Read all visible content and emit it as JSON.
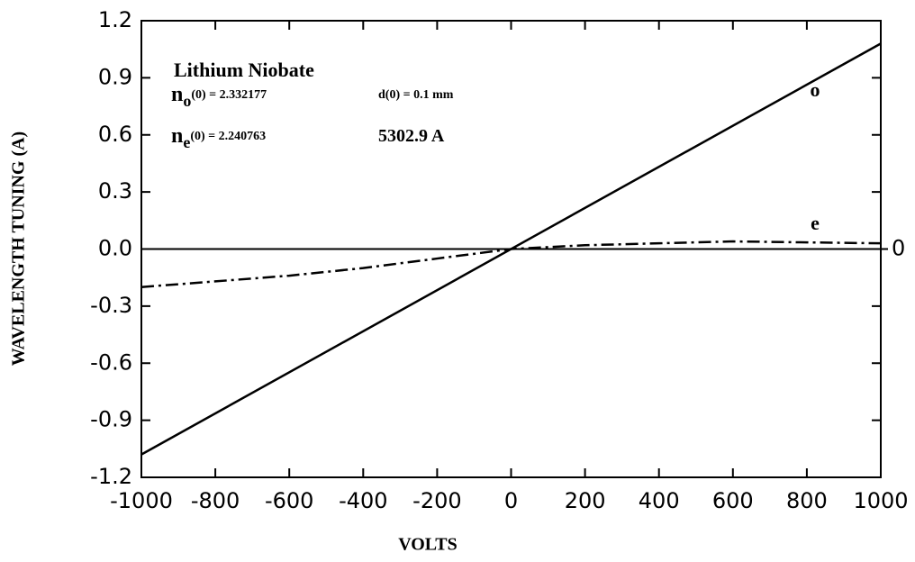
{
  "chart_data": {
    "type": "line",
    "x_label": "VOLTS",
    "y_label": "WAVELENGTH TUNING (A)",
    "xlim": [
      -1000,
      1000
    ],
    "ylim": [
      -1.2,
      1.2
    ],
    "xticks": [
      -1000,
      -800,
      -600,
      -400,
      -200,
      0,
      200,
      400,
      600,
      800,
      1000
    ],
    "yticks": [
      -1.2,
      -0.9,
      -0.6,
      -0.3,
      {
        "value": 0,
        "label": "0.0"
      },
      0.3,
      0.6,
      0.9,
      1.2
    ],
    "y2lim": [
      -1.2,
      1.2
    ],
    "y2ticks": [
      0
    ],
    "zero_line": true,
    "series": [
      {
        "name": "o",
        "color": "#000000",
        "line_style": "solid",
        "x": [
          -1000,
          1000
        ],
        "values": [
          -1.08,
          1.08
        ]
      },
      {
        "name": "e",
        "color": "#000000",
        "line_style": "dashdot",
        "x": [
          -1000,
          -800,
          -600,
          -400,
          -200,
          0,
          200,
          400,
          600,
          800,
          1000
        ],
        "values": [
          -0.2,
          -0.17,
          -0.14,
          -0.1,
          -0.05,
          0.0,
          0.02,
          0.03,
          0.04,
          0.035,
          0.03
        ]
      }
    ],
    "annotations": [
      {
        "text": "Lithium Niobate"
      },
      {
        "symbol": "n",
        "subscript": "o",
        "text": "(0) = 2.332177"
      },
      {
        "text": "d(0) = 0.1 mm"
      },
      {
        "symbol": "n",
        "subscript": "e",
        "text": "(0) = 2.240763"
      },
      {
        "text": "5302.9 A"
      }
    ]
  }
}
